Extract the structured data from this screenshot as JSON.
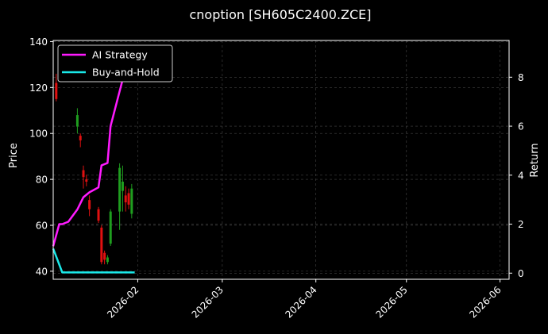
{
  "chart_data": {
    "type": "candlestick+line",
    "title": "cnoption [SH605C2400.ZCE]",
    "xlabel": "",
    "ylabel": "Price",
    "y2label": "Return",
    "xlim": [
      "2026-01-04",
      "2026-06-04"
    ],
    "ylim": [
      36.5,
      140.5
    ],
    "y2lim": [
      -0.25,
      9.5
    ],
    "xticks": [
      "2026-02",
      "2026-03",
      "2026-04",
      "2026-05",
      "2026-06"
    ],
    "yticks": [
      40,
      60,
      80,
      100,
      120,
      140
    ],
    "y2ticks": [
      0,
      2,
      4,
      6,
      8
    ],
    "grid": true,
    "legend_position": "top-left",
    "colors": {
      "background": "#000000",
      "grid": "#444444",
      "up": "#1f9e1f",
      "down": "#e01010",
      "ai_strategy": "#ff1aff",
      "buy_and_hold": "#1ae8e8"
    },
    "candles": [
      {
        "date": "2026-01-05",
        "open": 122,
        "high": 126,
        "low": 114,
        "close": 115
      },
      {
        "date": "2026-01-12",
        "open": 103,
        "high": 111,
        "low": 100,
        "close": 108
      },
      {
        "date": "2026-01-13",
        "open": 99,
        "high": 100,
        "low": 94,
        "close": 97
      },
      {
        "date": "2026-01-14",
        "open": 84,
        "high": 86,
        "low": 76,
        "close": 81
      },
      {
        "date": "2026-01-15",
        "open": 80,
        "high": 82,
        "low": 77,
        "close": 79
      },
      {
        "date": "2026-01-16",
        "open": 71,
        "high": 73,
        "low": 64,
        "close": 67
      },
      {
        "date": "2026-01-19",
        "open": 67,
        "high": 68,
        "low": 61,
        "close": 62
      },
      {
        "date": "2026-01-20",
        "open": 59,
        "high": 60,
        "low": 43,
        "close": 44
      },
      {
        "date": "2026-01-21",
        "open": 48,
        "high": 49,
        "low": 43,
        "close": 45
      },
      {
        "date": "2026-01-22",
        "open": 44,
        "high": 47,
        "low": 43,
        "close": 46
      },
      {
        "date": "2026-01-23",
        "open": 52,
        "high": 67,
        "low": 51,
        "close": 66
      },
      {
        "date": "2026-01-26",
        "open": 66,
        "high": 87,
        "low": 58,
        "close": 85
      },
      {
        "date": "2026-01-27",
        "open": 75,
        "high": 86,
        "low": 66,
        "close": 79
      },
      {
        "date": "2026-01-28",
        "open": 73,
        "high": 77,
        "low": 66,
        "close": 70
      },
      {
        "date": "2026-01-29",
        "open": 74,
        "high": 76,
        "low": 67,
        "close": 69
      },
      {
        "date": "2026-01-30",
        "open": 65,
        "high": 78,
        "low": 63,
        "close": 76
      }
    ],
    "series": [
      {
        "name": "AI Strategy",
        "dates": [
          "2026-01-04",
          "2026-01-06",
          "2026-01-07",
          "2026-01-09",
          "2026-01-12",
          "2026-01-14",
          "2026-01-16",
          "2026-01-19",
          "2026-01-20",
          "2026-01-22",
          "2026-01-23",
          "2026-01-27",
          "2026-01-28"
        ],
        "values": [
          1.1,
          2.0,
          2.0,
          2.1,
          2.6,
          3.1,
          3.3,
          3.5,
          4.4,
          4.5,
          6.0,
          7.9,
          9.1
        ]
      },
      {
        "name": "Buy-and-Hold",
        "dates": [
          "2026-01-04",
          "2026-01-07",
          "2026-01-31"
        ],
        "values": [
          1.0,
          0.03,
          0.03
        ]
      }
    ]
  }
}
